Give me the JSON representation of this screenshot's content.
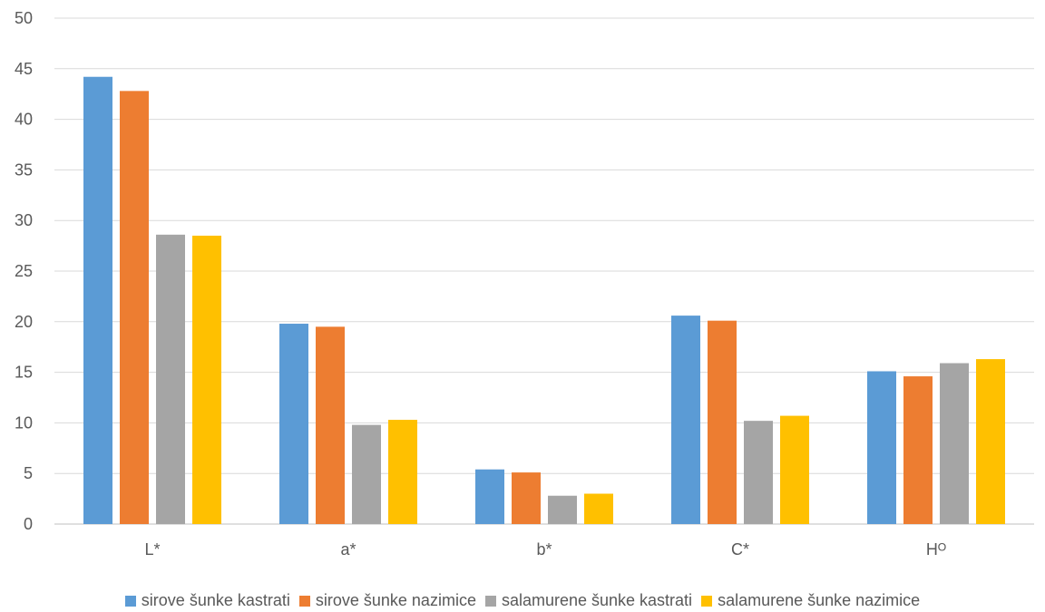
{
  "chart_data": {
    "type": "bar",
    "title": "",
    "xlabel": "",
    "ylabel": "",
    "categories": [
      "L*",
      "a*",
      "b*",
      "C*",
      "Hᴼ"
    ],
    "series": [
      {
        "name": "sirove šunke kastrati",
        "color": "#5B9BD5",
        "values": [
          44.2,
          19.8,
          5.4,
          20.6,
          15.1
        ]
      },
      {
        "name": "sirove šunke nazimice",
        "color": "#ED7D31",
        "values": [
          42.8,
          19.5,
          5.1,
          20.1,
          14.6
        ]
      },
      {
        "name": "salamurene šunke kastrati",
        "color": "#A5A5A5",
        "values": [
          28.6,
          9.8,
          2.8,
          10.2,
          15.9
        ]
      },
      {
        "name": "salamurene šunke nazimice",
        "color": "#FFC000",
        "values": [
          28.5,
          10.3,
          3.0,
          10.7,
          16.3
        ]
      }
    ],
    "ylim": [
      0,
      50
    ],
    "yticks": [
      0,
      5,
      10,
      15,
      20,
      25,
      30,
      35,
      40,
      45,
      50
    ],
    "grid": true,
    "legend_position": "bottom"
  }
}
